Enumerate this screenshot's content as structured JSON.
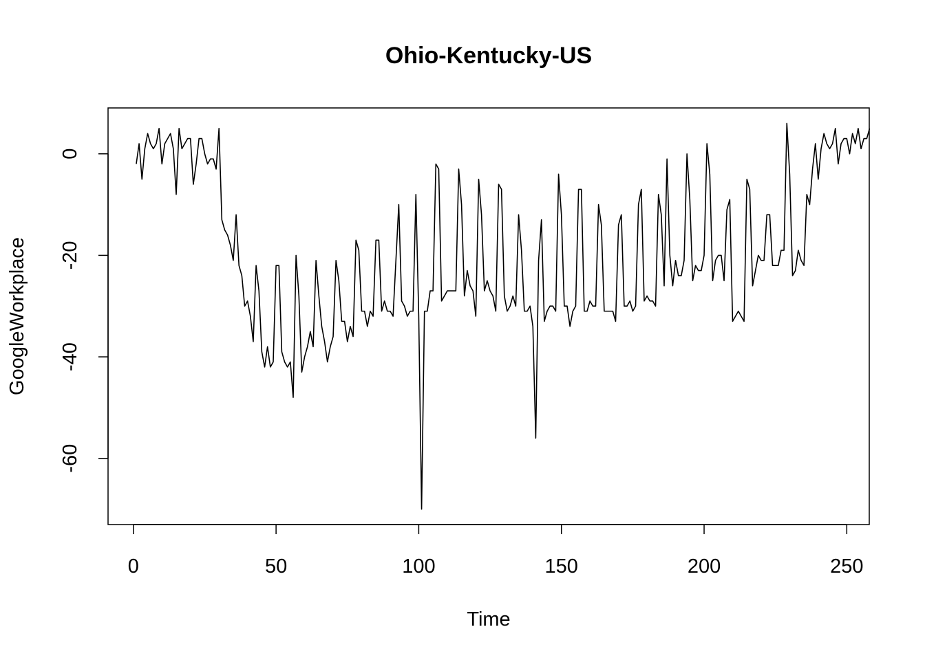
{
  "chart_data": {
    "type": "line",
    "title": "Ohio-Kentucky-US",
    "xlabel": "Time",
    "ylabel": "GoogleWorkplace",
    "xlim": [
      1,
      248
    ],
    "ylim": [
      -70,
      6
    ],
    "x_ticks": [
      0,
      50,
      100,
      150,
      200,
      250
    ],
    "y_ticks": [
      0,
      -20,
      -40,
      -60
    ],
    "grid": false,
    "legend": "none",
    "line_color": "#000000",
    "series": [
      {
        "values": [
          -2,
          2,
          -5,
          1,
          4,
          2,
          1,
          2,
          5,
          -2,
          2,
          3,
          4,
          1,
          -8,
          5,
          1,
          2,
          3,
          3,
          -6,
          -2,
          3,
          3,
          0,
          -2,
          -1,
          -1,
          -3,
          5,
          -13,
          -15,
          -16,
          -18,
          -21,
          -12,
          -22,
          -24,
          -30,
          -29,
          -32,
          -37,
          -22,
          -27,
          -39,
          -42,
          -38,
          -42,
          -41,
          -22,
          -22,
          -39,
          -41,
          -42,
          -41,
          -48,
          -20,
          -28,
          -43,
          -40,
          -38,
          -35,
          -38,
          -21,
          -28,
          -34,
          -37,
          -41,
          -38,
          -36,
          -21,
          -25,
          -33,
          -33,
          -37,
          -34,
          -36,
          -17,
          -19,
          -31,
          -31,
          -34,
          -31,
          -32,
          -17,
          -17,
          -31,
          -29,
          -31,
          -31,
          -32,
          -21,
          -10,
          -29,
          -30,
          -32,
          -31,
          -31,
          -8,
          -32,
          -70,
          -31,
          -31,
          -27,
          -27,
          -2,
          -3,
          -29,
          -28,
          -27,
          -27,
          -27,
          -27,
          -3,
          -10,
          -28,
          -23,
          -26,
          -27,
          -32,
          -5,
          -12,
          -27,
          -25,
          -27,
          -28,
          -31,
          -6,
          -7,
          -28,
          -31,
          -30,
          -28,
          -30,
          -12,
          -19,
          -31,
          -31,
          -30,
          -34,
          -56,
          -21,
          -13,
          -33,
          -31,
          -30,
          -30,
          -31,
          -4,
          -12,
          -30,
          -30,
          -34,
          -31,
          -30,
          -7,
          -7,
          -31,
          -31,
          -29,
          -30,
          -30,
          -10,
          -14,
          -31,
          -31,
          -31,
          -31,
          -33,
          -14,
          -12,
          -30,
          -30,
          -29,
          -31,
          -30,
          -10,
          -7,
          -29,
          -28,
          -29,
          -29,
          -30,
          -8,
          -12,
          -26,
          -1,
          -20,
          -26,
          -21,
          -24,
          -24,
          -21,
          0,
          -9,
          -25,
          -22,
          -23,
          -23,
          -20,
          2,
          -4,
          -25,
          -21,
          -20,
          -20,
          -25,
          -11,
          -9,
          -33,
          -32,
          -31,
          -32,
          -33,
          -5,
          -7,
          -26,
          -23,
          -20,
          -21,
          -21,
          -12,
          -12,
          -22,
          -22,
          -22,
          -19,
          -19,
          6,
          -4,
          -24,
          -23,
          -19,
          -21,
          -22,
          -8,
          -10,
          -3,
          2,
          -5,
          1,
          4,
          2,
          1,
          2,
          5,
          -2,
          2,
          3,
          3,
          0,
          4,
          2,
          5,
          1,
          3,
          3,
          5
        ]
      }
    ]
  }
}
